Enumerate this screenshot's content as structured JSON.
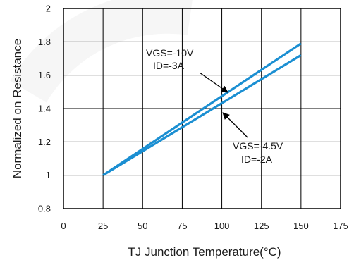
{
  "chart_data": {
    "type": "line",
    "xlabel": "TJ Junction Temperature(°C)",
    "ylabel": "Normalized on Resistance",
    "xlim": [
      0,
      175
    ],
    "ylim": [
      0.8,
      2
    ],
    "x_ticks": [
      0,
      25,
      50,
      75,
      100,
      125,
      150,
      175
    ],
    "y_ticks": [
      0.8,
      1,
      1.2,
      1.4,
      1.6,
      1.8,
      2
    ],
    "x_tick_labels": [
      "0",
      "25",
      "50",
      "75",
      "100",
      "125",
      "150",
      "175"
    ],
    "y_tick_labels": [
      "0.8",
      "1",
      "1.2",
      "1.4",
      "1.6",
      "1.8",
      "2"
    ],
    "grid": true,
    "series_color": "#1b8fd2",
    "series": [
      {
        "x": [
          25,
          150
        ],
        "y": [
          1.0,
          1.79
        ]
      },
      {
        "x": [
          25,
          150
        ],
        "y": [
          1.0,
          1.72
        ]
      }
    ],
    "annotations": [
      {
        "lines": [
          "VGS=-10V",
          "ID=-3A"
        ],
        "series_index": 0
      },
      {
        "lines": [
          "VGS=-4.5V",
          "ID=-2A"
        ],
        "series_index": 1
      }
    ]
  }
}
